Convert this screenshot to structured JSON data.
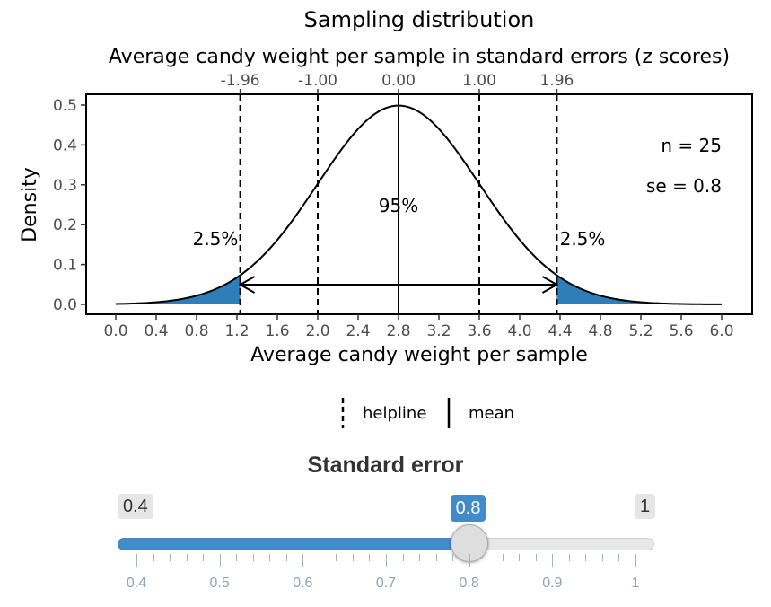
{
  "chart_data": {
    "type": "area",
    "title": "Sampling distribution",
    "top_axis_label": "Average candy weight per sample in standard errors (z scores)",
    "top_ticks": [
      "-1.96",
      "-1.00",
      "0.00",
      "1.00",
      "1.96"
    ],
    "top_tick_z": [
      -1.96,
      -1.0,
      0.0,
      1.0,
      1.96
    ],
    "xlabel": "Average candy weight per sample",
    "ylabel": "Density",
    "xlim": [
      0.0,
      6.0
    ],
    "ylim": [
      0.0,
      0.5
    ],
    "x_ticks": [
      "0.0",
      "0.4",
      "0.8",
      "1.2",
      "1.6",
      "2.0",
      "2.4",
      "2.8",
      "3.2",
      "3.6",
      "4.0",
      "4.4",
      "4.8",
      "5.2",
      "5.6",
      "6.0"
    ],
    "y_ticks": [
      "0.0",
      "0.1",
      "0.2",
      "0.3",
      "0.4",
      "0.5"
    ],
    "mean": 2.8,
    "se": 0.8,
    "peak_density": 0.4987,
    "helplines": [
      1.232,
      2.0,
      3.6,
      4.368
    ],
    "shaded_tails": [
      [
        0.0,
        1.232
      ],
      [
        4.368,
        6.0
      ]
    ],
    "annotations": {
      "left_tail": "2.5%",
      "right_tail": "2.5%",
      "center": "95%",
      "n": "n = 25",
      "se": "se = 0.8"
    },
    "legend": [
      {
        "label": "helpline",
        "style": "dashed"
      },
      {
        "label": "mean",
        "style": "solid"
      }
    ],
    "colors": {
      "shade": "#2e7fb9",
      "line": "#000000"
    }
  },
  "slider": {
    "title": "Standard error",
    "min": 0.4,
    "max": 1.0,
    "value": 0.8,
    "min_label": "0.4",
    "max_label": "1",
    "value_label": "0.8",
    "tick_labels": [
      "0.4",
      "0.5",
      "0.6",
      "0.7",
      "0.8",
      "0.9",
      "1"
    ],
    "accent": "#428bca"
  }
}
